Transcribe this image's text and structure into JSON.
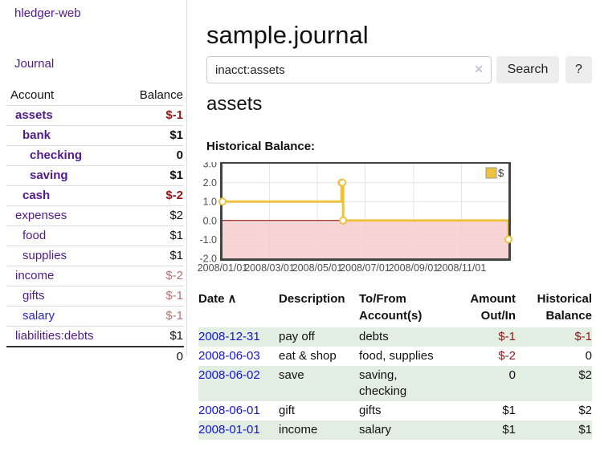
{
  "icons": {
    "sort_asc": "∧",
    "clear": "✕"
  },
  "sidebar": {
    "app_title": "hledger-web",
    "nav": {
      "journal_label": "Journal"
    },
    "accounts_table": {
      "headers": {
        "account": "Account",
        "balance": "Balance"
      },
      "rows": [
        {
          "name": "assets",
          "balance": "$-1",
          "depth": 1,
          "bold": true,
          "negative": true,
          "muted": false,
          "blue": false
        },
        {
          "name": "bank",
          "balance": "$1",
          "depth": 2,
          "bold": true,
          "negative": false,
          "muted": false,
          "blue": false
        },
        {
          "name": "checking",
          "balance": "0",
          "depth": 3,
          "bold": true,
          "negative": false,
          "muted": false,
          "blue": false
        },
        {
          "name": "saving",
          "balance": "$1",
          "depth": 3,
          "bold": true,
          "negative": false,
          "muted": false,
          "blue": false
        },
        {
          "name": "cash",
          "balance": "$-2",
          "depth": 2,
          "bold": true,
          "negative": true,
          "muted": false,
          "blue": false
        },
        {
          "name": "expenses",
          "balance": "$2",
          "depth": 1,
          "bold": false,
          "negative": false,
          "muted": false,
          "blue": false
        },
        {
          "name": "food",
          "balance": "$1",
          "depth": 2,
          "bold": false,
          "negative": false,
          "muted": false,
          "blue": false
        },
        {
          "name": "supplies",
          "balance": "$1",
          "depth": 2,
          "bold": false,
          "negative": false,
          "muted": false,
          "blue": false
        },
        {
          "name": "income",
          "balance": "$-2",
          "depth": 1,
          "bold": false,
          "negative": true,
          "muted": true,
          "blue": false
        },
        {
          "name": "gifts",
          "balance": "$-1",
          "depth": 2,
          "bold": false,
          "negative": true,
          "muted": true,
          "blue": false
        },
        {
          "name": "salary",
          "balance": "$-1",
          "depth": 2,
          "bold": false,
          "negative": true,
          "muted": true,
          "blue": true
        },
        {
          "name": "liabilities:debts",
          "balance": "$1",
          "depth": 1,
          "bold": false,
          "negative": false,
          "muted": false,
          "blue": false
        }
      ],
      "total": "0"
    }
  },
  "header": {
    "title": "sample.journal",
    "search": {
      "value": "inacct:assets",
      "button_label": "Search",
      "help_label": "?"
    }
  },
  "main": {
    "account_heading": "assets",
    "chart_label": "Historical Balance:"
  },
  "chart_data": {
    "type": "line",
    "title": "Historical Balance",
    "style": "step",
    "legend": [
      {
        "label": "$",
        "color": "#EDC240"
      }
    ],
    "legend_position": "top-right",
    "grid": true,
    "x_range": [
      "2008-01-01",
      "2008-12-31"
    ],
    "ylim": [
      -2,
      3
    ],
    "y_ticks": [
      "3.0",
      "2.0",
      "1.0",
      "0.0",
      "-1.0",
      "-2.0"
    ],
    "x_ticks": [
      "2008/01/01",
      "2008/03/01",
      "2008/05/01",
      "2008/07/01",
      "2008/09/01",
      "2008/11/01"
    ],
    "series": [
      {
        "name": "$",
        "color": "#EDC240",
        "points": [
          {
            "date": "2008-01-01",
            "value": 1
          },
          {
            "date": "2008-06-01",
            "value": 2
          },
          {
            "date": "2008-06-02",
            "value": 2
          },
          {
            "date": "2008-06-03",
            "value": 0
          },
          {
            "date": "2008-12-31",
            "value": -1
          }
        ]
      }
    ],
    "negative_region_fill": "#f6caca",
    "zero_line_color": "#8b0000"
  },
  "register": {
    "headers": {
      "date": [
        "Date"
      ],
      "description": [
        "Description"
      ],
      "accounts": [
        "To/From",
        "Account(s)"
      ],
      "amount": [
        "Amount",
        "Out/In"
      ],
      "balance": [
        "Historical",
        "Balance"
      ]
    },
    "rows": [
      {
        "date": "2008-12-31",
        "description": "pay off",
        "accounts": "debts",
        "amount": "$-1",
        "amount_negative": true,
        "balance": "$-1",
        "balance_negative": true,
        "shaded": true
      },
      {
        "date": "2008-06-03",
        "description": "eat & shop",
        "accounts": "food, supplies",
        "amount": "$-2",
        "amount_negative": true,
        "balance": "0",
        "balance_negative": false,
        "shaded": false
      },
      {
        "date": "2008-06-02",
        "description": "save",
        "accounts": "saving,\nchecking",
        "amount": "0",
        "amount_negative": false,
        "balance": "$2",
        "balance_negative": false,
        "shaded": true
      },
      {
        "date": "2008-06-01",
        "description": "gift",
        "accounts": "gifts",
        "amount": "$1",
        "amount_negative": false,
        "balance": "$2",
        "balance_negative": false,
        "shaded": false
      },
      {
        "date": "2008-01-01",
        "description": "income",
        "accounts": "salary",
        "amount": "$1",
        "amount_negative": false,
        "balance": "$1",
        "balance_negative": false,
        "shaded": true
      }
    ]
  }
}
